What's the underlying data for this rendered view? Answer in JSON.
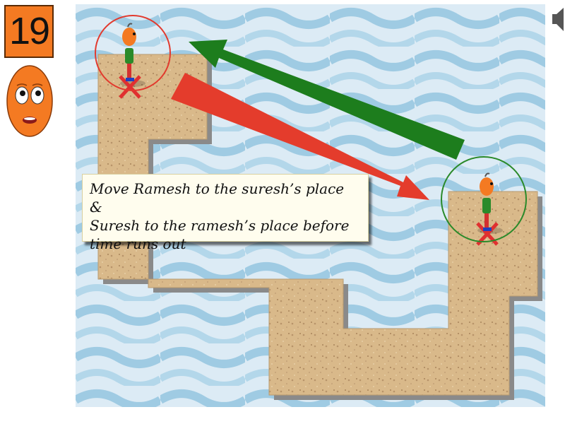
{
  "hud": {
    "timer_value": "19",
    "timer_color": "#f47a22",
    "mascot_icon": "worried-face-icon",
    "sound_icon": "speaker-icon"
  },
  "board": {
    "water_color": "#9fcbe3",
    "ground_color": "#d9b98a"
  },
  "characters": [
    {
      "name": "Ramesh",
      "marker_color": "#e23a2e",
      "icon": "person-icon"
    },
    {
      "name": "Suresh",
      "marker_color": "#2a8a2a",
      "icon": "person-icon"
    }
  ],
  "arrows": [
    {
      "color": "#e43c2c",
      "from": "Ramesh",
      "to": "Suresh"
    },
    {
      "color": "#1d7d1d",
      "from": "Suresh",
      "to": "Ramesh"
    }
  ],
  "instruction": {
    "text": "Move Ramesh to the suresh’s place &\nSuresh to the ramesh’s place before\ntime runs out"
  }
}
